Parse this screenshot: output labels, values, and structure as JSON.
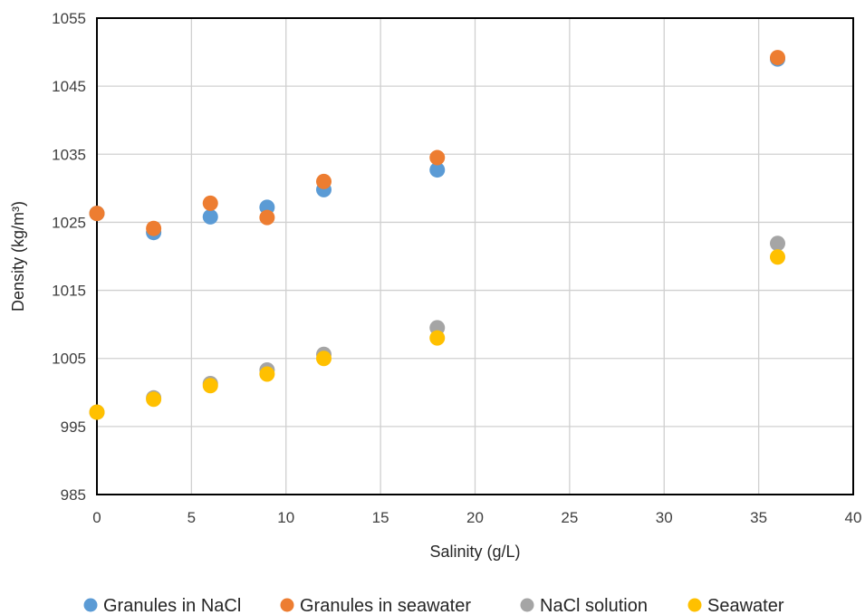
{
  "chart_data": {
    "type": "scatter",
    "xlabel": "Salinity (g/L)",
    "ylabel": "Density (kg/m³)",
    "xlim": [
      0,
      40
    ],
    "ylim": [
      985,
      1055
    ],
    "xticks": [
      0,
      5,
      10,
      15,
      20,
      25,
      30,
      35,
      40
    ],
    "yticks": [
      985,
      995,
      1005,
      1015,
      1025,
      1035,
      1045,
      1055
    ],
    "grid": true,
    "legend_position": "bottom",
    "series": [
      {
        "name": "Granules in NaCl",
        "color": "#5b9bd5",
        "points": [
          [
            0,
            1026.3
          ],
          [
            3,
            1023.5
          ],
          [
            6,
            1025.8
          ],
          [
            9,
            1027.2
          ],
          [
            12,
            1029.8
          ],
          [
            18,
            1032.7
          ],
          [
            36,
            1049.0
          ]
        ]
      },
      {
        "name": "Granules in seawater",
        "color": "#ed7d31",
        "points": [
          [
            0,
            1026.3
          ],
          [
            3,
            1024.1
          ],
          [
            6,
            1027.8
          ],
          [
            9,
            1025.7
          ],
          [
            12,
            1031.0
          ],
          [
            18,
            1034.5
          ],
          [
            36,
            1049.2
          ]
        ]
      },
      {
        "name": "NaCl solution",
        "color": "#a5a5a5",
        "points": [
          [
            0,
            997.1
          ],
          [
            3,
            999.2
          ],
          [
            6,
            1001.3
          ],
          [
            9,
            1003.3
          ],
          [
            12,
            1005.6
          ],
          [
            18,
            1009.5
          ],
          [
            36,
            1021.9
          ]
        ]
      },
      {
        "name": "Seawater",
        "color": "#ffc000",
        "points": [
          [
            0,
            997.1
          ],
          [
            3,
            999.0
          ],
          [
            6,
            1001.0
          ],
          [
            9,
            1002.7
          ],
          [
            12,
            1005.0
          ],
          [
            18,
            1008.0
          ],
          [
            36,
            1019.9
          ]
        ]
      }
    ]
  }
}
